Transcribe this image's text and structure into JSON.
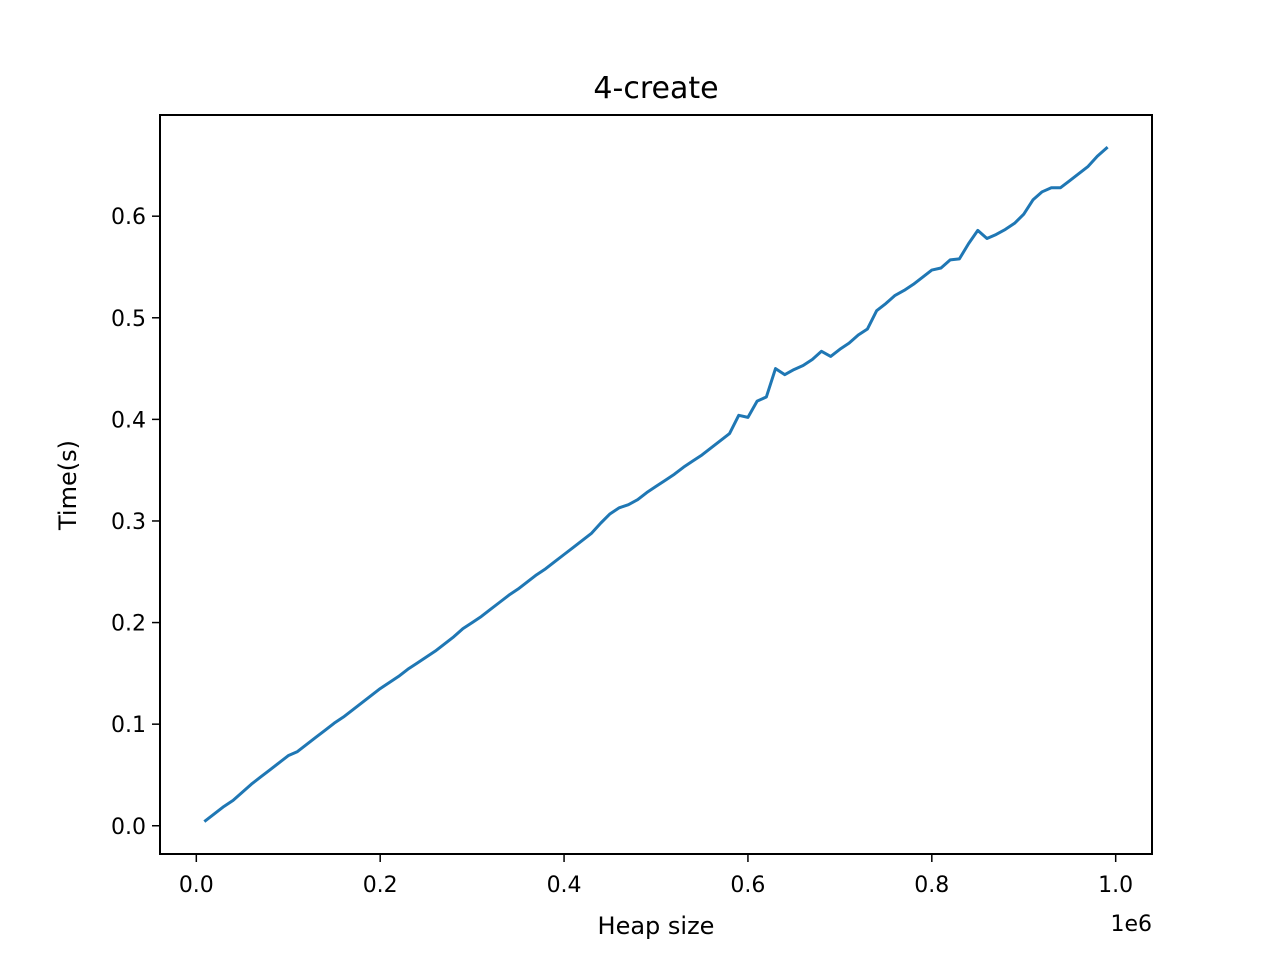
{
  "chart_data": {
    "type": "line",
    "title": "4-create",
    "xlabel": "Heap size",
    "ylabel": "Time(s)",
    "x_offset_text": "1e6",
    "xlim": [
      -0.0395,
      1.0395
    ],
    "ylim": [
      -0.0278,
      0.6996
    ],
    "x_ticks": [
      0.0,
      0.2,
      0.4,
      0.6,
      0.8,
      1.0
    ],
    "x_tick_labels": [
      "0.0",
      "0.2",
      "0.4",
      "0.6",
      "0.8",
      "1.0"
    ],
    "y_ticks": [
      0.0,
      0.1,
      0.2,
      0.3,
      0.4,
      0.5,
      0.6
    ],
    "y_tick_labels": [
      "0.0",
      "0.1",
      "0.2",
      "0.3",
      "0.4",
      "0.5",
      "0.6"
    ],
    "grid": false,
    "series": [
      {
        "color": "#1f77b4",
        "x": [
          0.01,
          0.02,
          0.03,
          0.04,
          0.05,
          0.06,
          0.07,
          0.08,
          0.09,
          0.1,
          0.11,
          0.12,
          0.13,
          0.14,
          0.15,
          0.16,
          0.17,
          0.18,
          0.19,
          0.2,
          0.21,
          0.22,
          0.23,
          0.24,
          0.25,
          0.26,
          0.27,
          0.28,
          0.29,
          0.3,
          0.31,
          0.32,
          0.33,
          0.34,
          0.35,
          0.36,
          0.37,
          0.38,
          0.39,
          0.4,
          0.41,
          0.42,
          0.43,
          0.44,
          0.45,
          0.46,
          0.47,
          0.48,
          0.49,
          0.5,
          0.51,
          0.52,
          0.53,
          0.54,
          0.55,
          0.56,
          0.57,
          0.58,
          0.59,
          0.6,
          0.61,
          0.62,
          0.63,
          0.64,
          0.65,
          0.66,
          0.67,
          0.68,
          0.69,
          0.7,
          0.71,
          0.72,
          0.73,
          0.74,
          0.75,
          0.76,
          0.77,
          0.78,
          0.79,
          0.8,
          0.81,
          0.82,
          0.83,
          0.84,
          0.85,
          0.86,
          0.87,
          0.88,
          0.89,
          0.9,
          0.91,
          0.92,
          0.93,
          0.94,
          0.95,
          0.96,
          0.97,
          0.98,
          0.99
        ],
        "y": [
          0.005,
          0.012,
          0.019,
          0.025,
          0.033,
          0.041,
          0.048,
          0.055,
          0.062,
          0.069,
          0.073,
          0.08,
          0.087,
          0.094,
          0.101,
          0.107,
          0.114,
          0.121,
          0.128,
          0.135,
          0.141,
          0.147,
          0.154,
          0.16,
          0.166,
          0.172,
          0.179,
          0.186,
          0.194,
          0.2,
          0.206,
          0.213,
          0.22,
          0.227,
          0.233,
          0.24,
          0.247,
          0.253,
          0.26,
          0.267,
          0.274,
          0.281,
          0.288,
          0.298,
          0.307,
          0.313,
          0.316,
          0.321,
          0.328,
          0.334,
          0.34,
          0.346,
          0.353,
          0.359,
          0.365,
          0.372,
          0.379,
          0.386,
          0.404,
          0.402,
          0.418,
          0.422,
          0.45,
          0.444,
          0.449,
          0.453,
          0.459,
          0.467,
          0.462,
          0.469,
          0.475,
          0.483,
          0.489,
          0.507,
          0.514,
          0.522,
          0.527,
          0.533,
          0.54,
          0.547,
          0.549,
          0.557,
          0.558,
          0.573,
          0.586,
          0.578,
          0.582,
          0.587,
          0.593,
          0.602,
          0.616,
          0.624,
          0.628,
          0.628,
          0.635,
          0.642,
          0.649,
          0.659,
          0.667
        ]
      }
    ]
  }
}
